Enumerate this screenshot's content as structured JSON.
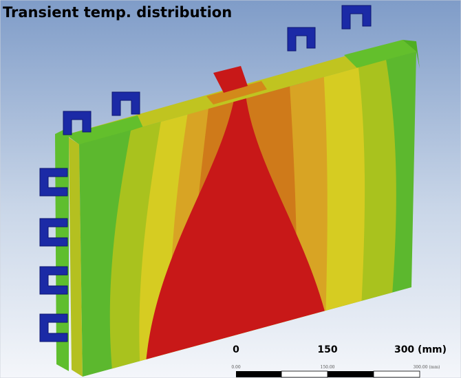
{
  "title": "Transient temp. distribution",
  "scale": {
    "labels": [
      "0",
      "150",
      "300 (mm)"
    ],
    "fine_labels": [
      "0.00",
      "150.00",
      "300.00 (mm)"
    ]
  }
}
